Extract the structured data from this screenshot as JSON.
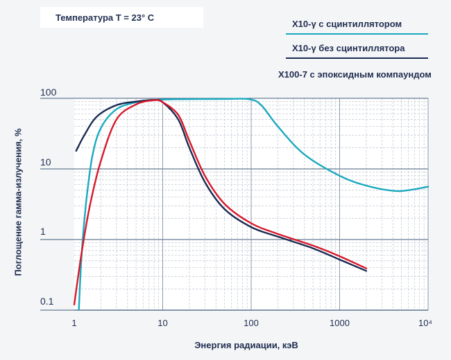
{
  "chart_data": {
    "type": "line",
    "title": "Температура T = 23° C",
    "xlabel": "Энергия радиации, кэВ",
    "ylabel": "Поглощение гамма-излучения, %",
    "x_scale": "log",
    "y_scale": "log",
    "xlim": [
      1,
      10000
    ],
    "ylim": [
      0.1,
      100
    ],
    "x_ticks": [
      "1",
      "10",
      "100",
      "1000",
      "10⁴"
    ],
    "y_ticks": [
      "0.1",
      "1",
      "10",
      "100"
    ],
    "grid": true,
    "legend_position": "top-right",
    "series": [
      {
        "name": "X10-γ с сцинтиллятором",
        "color": "#1aa9bf",
        "points": [
          [
            1.1,
            0.05
          ],
          [
            1.2,
            0.5
          ],
          [
            1.35,
            3
          ],
          [
            1.6,
            15
          ],
          [
            2,
            38
          ],
          [
            3,
            70
          ],
          [
            5,
            88
          ],
          [
            8,
            95
          ],
          [
            15,
            97
          ],
          [
            50,
            98
          ],
          [
            95,
            97
          ],
          [
            130,
            80
          ],
          [
            200,
            40
          ],
          [
            400,
            16
          ],
          [
            1000,
            8
          ],
          [
            2000,
            5.8
          ],
          [
            4000,
            4.9
          ],
          [
            6000,
            5.0
          ],
          [
            10000,
            5.6
          ]
        ]
      },
      {
        "name": "X10-γ без сцинтиллятора",
        "color": "#1a2a50",
        "points": [
          [
            1.05,
            18
          ],
          [
            1.3,
            30
          ],
          [
            1.8,
            55
          ],
          [
            3,
            80
          ],
          [
            5,
            90
          ],
          [
            8,
            95
          ],
          [
            10,
            88
          ],
          [
            15,
            50
          ],
          [
            20,
            20
          ],
          [
            30,
            6.5
          ],
          [
            50,
            2.7
          ],
          [
            100,
            1.5
          ],
          [
            200,
            1.1
          ],
          [
            500,
            0.75
          ],
          [
            1000,
            0.52
          ],
          [
            2000,
            0.36
          ]
        ]
      },
      {
        "name": "X100-7 с эпоксидным компаундом",
        "color": "#d7182a",
        "points": [
          [
            1.0,
            0.12
          ],
          [
            1.2,
            0.6
          ],
          [
            1.5,
            3
          ],
          [
            2,
            13
          ],
          [
            3,
            50
          ],
          [
            5,
            82
          ],
          [
            8,
            94
          ],
          [
            10,
            88
          ],
          [
            15,
            58
          ],
          [
            20,
            25
          ],
          [
            30,
            8
          ],
          [
            50,
            3.2
          ],
          [
            100,
            1.7
          ],
          [
            200,
            1.2
          ],
          [
            500,
            0.82
          ],
          [
            1000,
            0.58
          ],
          [
            2000,
            0.39
          ]
        ]
      }
    ]
  }
}
